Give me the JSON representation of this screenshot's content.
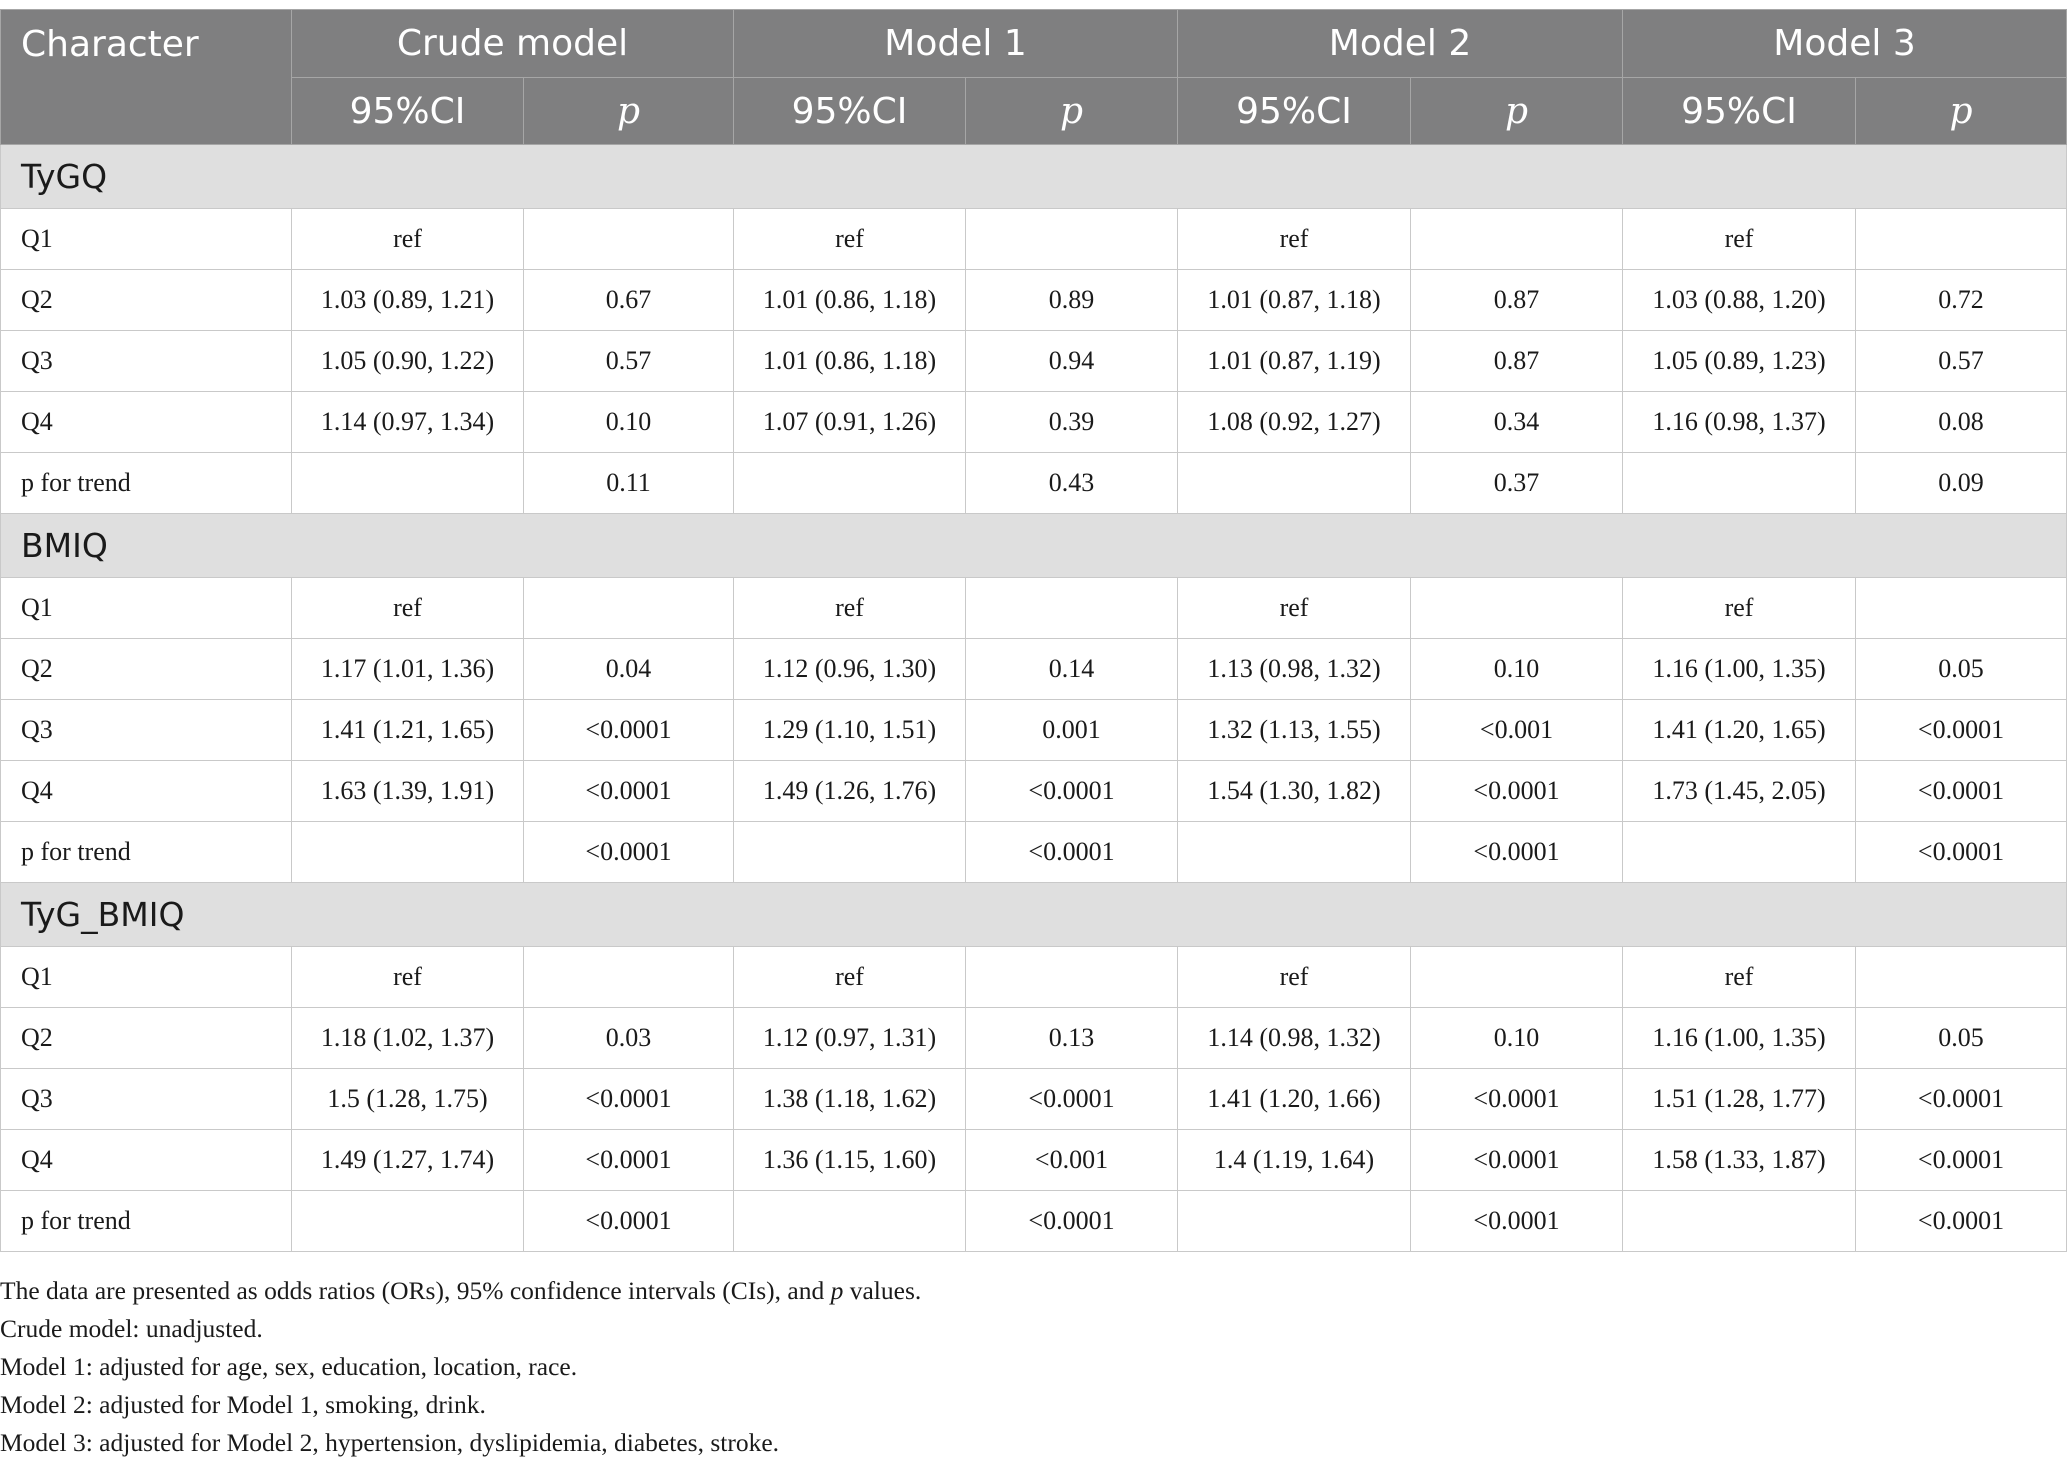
{
  "header": {
    "character": "Character",
    "models": [
      "Crude model",
      "Model 1",
      "Model 2",
      "Model 3"
    ],
    "ci_label": "95%CI",
    "p_label": "p"
  },
  "groups": [
    {
      "name": "TyGQ",
      "rows": [
        {
          "label": "Q1",
          "values": [
            "ref",
            "",
            "ref",
            "",
            "ref",
            "",
            "ref",
            ""
          ]
        },
        {
          "label": "Q2",
          "values": [
            "1.03 (0.89, 1.21)",
            "0.67",
            "1.01 (0.86, 1.18)",
            "0.89",
            "1.01 (0.87, 1.18)",
            "0.87",
            "1.03 (0.88, 1.20)",
            "0.72"
          ]
        },
        {
          "label": "Q3",
          "values": [
            "1.05 (0.90, 1.22)",
            "0.57",
            "1.01 (0.86, 1.18)",
            "0.94",
            "1.01 (0.87, 1.19)",
            "0.87",
            "1.05 (0.89, 1.23)",
            "0.57"
          ]
        },
        {
          "label": "Q4",
          "values": [
            "1.14 (0.97, 1.34)",
            "0.10",
            "1.07 (0.91, 1.26)",
            "0.39",
            "1.08 (0.92, 1.27)",
            "0.34",
            "1.16 (0.98, 1.37)",
            "0.08"
          ]
        },
        {
          "label": "p for trend",
          "values": [
            "",
            "0.11",
            "",
            "0.43",
            "",
            "0.37",
            "",
            "0.09"
          ]
        }
      ]
    },
    {
      "name": "BMIQ",
      "rows": [
        {
          "label": "Q1",
          "values": [
            "ref",
            "",
            "ref",
            "",
            "ref",
            "",
            "ref",
            ""
          ]
        },
        {
          "label": "Q2",
          "values": [
            "1.17 (1.01, 1.36)",
            "0.04",
            "1.12 (0.96, 1.30)",
            "0.14",
            "1.13 (0.98, 1.32)",
            "0.10",
            "1.16 (1.00, 1.35)",
            "0.05"
          ]
        },
        {
          "label": "Q3",
          "values": [
            "1.41 (1.21, 1.65)",
            "<0.0001",
            "1.29 (1.10, 1.51)",
            "0.001",
            "1.32 (1.13, 1.55)",
            "<0.001",
            "1.41 (1.20, 1.65)",
            "<0.0001"
          ]
        },
        {
          "label": "Q4",
          "values": [
            "1.63 (1.39, 1.91)",
            "<0.0001",
            "1.49 (1.26, 1.76)",
            "<0.0001",
            "1.54 (1.30, 1.82)",
            "<0.0001",
            "1.73 (1.45, 2.05)",
            "<0.0001"
          ]
        },
        {
          "label": "p for trend",
          "values": [
            "",
            "<0.0001",
            "",
            "<0.0001",
            "",
            "<0.0001",
            "",
            "<0.0001"
          ]
        }
      ]
    },
    {
      "name": "TyG_BMIQ",
      "rows": [
        {
          "label": "Q1",
          "values": [
            "ref",
            "",
            "ref",
            "",
            "ref",
            "",
            "ref",
            ""
          ]
        },
        {
          "label": "Q2",
          "values": [
            "1.18 (1.02, 1.37)",
            "0.03",
            "1.12 (0.97, 1.31)",
            "0.13",
            "1.14 (0.98, 1.32)",
            "0.10",
            "1.16 (1.00, 1.35)",
            "0.05"
          ]
        },
        {
          "label": "Q3",
          "values": [
            "1.5 (1.28, 1.75)",
            "<0.0001",
            "1.38 (1.18, 1.62)",
            "<0.0001",
            "1.41 (1.20, 1.66)",
            "<0.0001",
            "1.51 (1.28, 1.77)",
            "<0.0001"
          ]
        },
        {
          "label": "Q4",
          "values": [
            "1.49 (1.27, 1.74)",
            "<0.0001",
            "1.36 (1.15, 1.60)",
            "<0.001",
            "1.4 (1.19, 1.64)",
            "<0.0001",
            "1.58 (1.33, 1.87)",
            "<0.0001"
          ]
        },
        {
          "label": "p for trend",
          "values": [
            "",
            "<0.0001",
            "",
            "<0.0001",
            "",
            "<0.0001",
            "",
            "<0.0001"
          ]
        }
      ]
    }
  ],
  "footnotes": {
    "line1_before": "The data are presented as odds ratios (ORs), 95% confidence intervals (CIs), and ",
    "line1_italic": "p",
    "line1_after": " values.",
    "line2": "Crude model: unadjusted.",
    "line3": "Model 1: adjusted for age, sex, education, location, race.",
    "line4": "Model 2: adjusted for Model 1, smoking, drink.",
    "line5": "Model 3: adjusted for Model 2, hypertension, dyslipidemia, diabetes, stroke."
  }
}
